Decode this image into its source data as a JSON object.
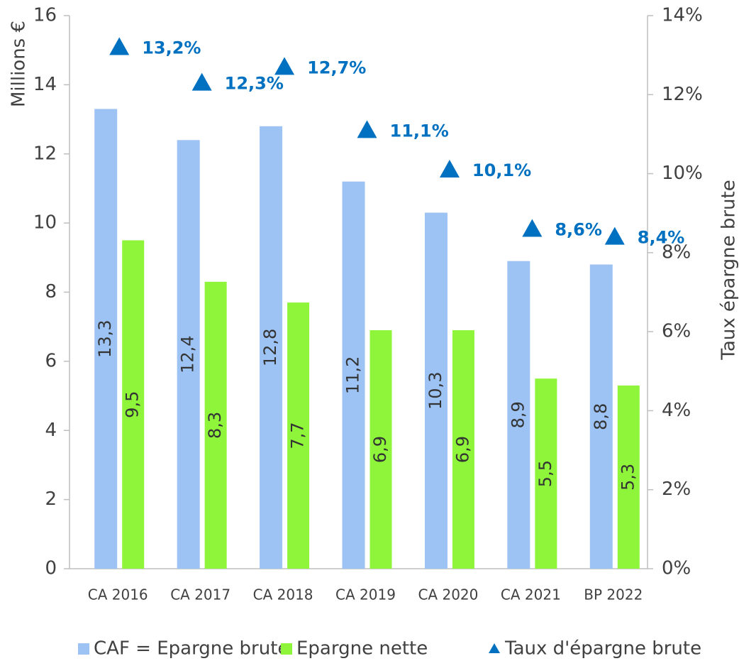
{
  "chart_data": {
    "type": "bar",
    "categories": [
      "CA 2016",
      "CA 2017",
      "CA 2018",
      "CA 2019",
      "CA 2020",
      "CA 2021",
      "BP 2022"
    ],
    "series": [
      {
        "name": "CAF = Epargne brute",
        "color": "#9dc3f5",
        "values": [
          13.3,
          12.4,
          12.8,
          11.2,
          10.3,
          8.9,
          8.8
        ],
        "value_labels": [
          "13,3",
          "12,4",
          "12,8",
          "11,2",
          "10,3",
          "8,9",
          "8,8"
        ]
      },
      {
        "name": "Epargne nette",
        "color": "#8ff53a",
        "values": [
          9.5,
          8.3,
          7.7,
          6.9,
          6.9,
          5.5,
          5.3
        ],
        "value_labels": [
          "9,5",
          "8,3",
          "7,7",
          "6,9",
          "6,9",
          "5,5",
          "5,3"
        ]
      },
      {
        "name": "Taux d'épargne brute",
        "color": "#0070c0",
        "axis": "y2",
        "values": [
          13.2,
          12.3,
          12.7,
          11.1,
          10.1,
          8.6,
          8.4
        ],
        "value_labels": [
          "13,2%",
          "12,3%",
          "12,7%",
          "11,1%",
          "10,1%",
          "8,6%",
          "8,4%"
        ]
      }
    ],
    "ylabel": "Millions €",
    "y2label": "Taux épargne brute",
    "ylim": [
      0,
      16
    ],
    "yticks": [
      0,
      2,
      4,
      6,
      8,
      10,
      12,
      14,
      16
    ],
    "y2lim": [
      0,
      14
    ],
    "y2ticks": [
      {
        "value": 0,
        "label": "0%"
      },
      {
        "value": 2,
        "label": "2%"
      },
      {
        "value": 4,
        "label": "4%"
      },
      {
        "value": 6,
        "label": "6%"
      },
      {
        "value": 8,
        "label": "8%"
      },
      {
        "value": 10,
        "label": "10%"
      },
      {
        "value": 12,
        "label": "12%"
      },
      {
        "value": 14,
        "label": "14%"
      }
    ],
    "legend": "bottom"
  }
}
